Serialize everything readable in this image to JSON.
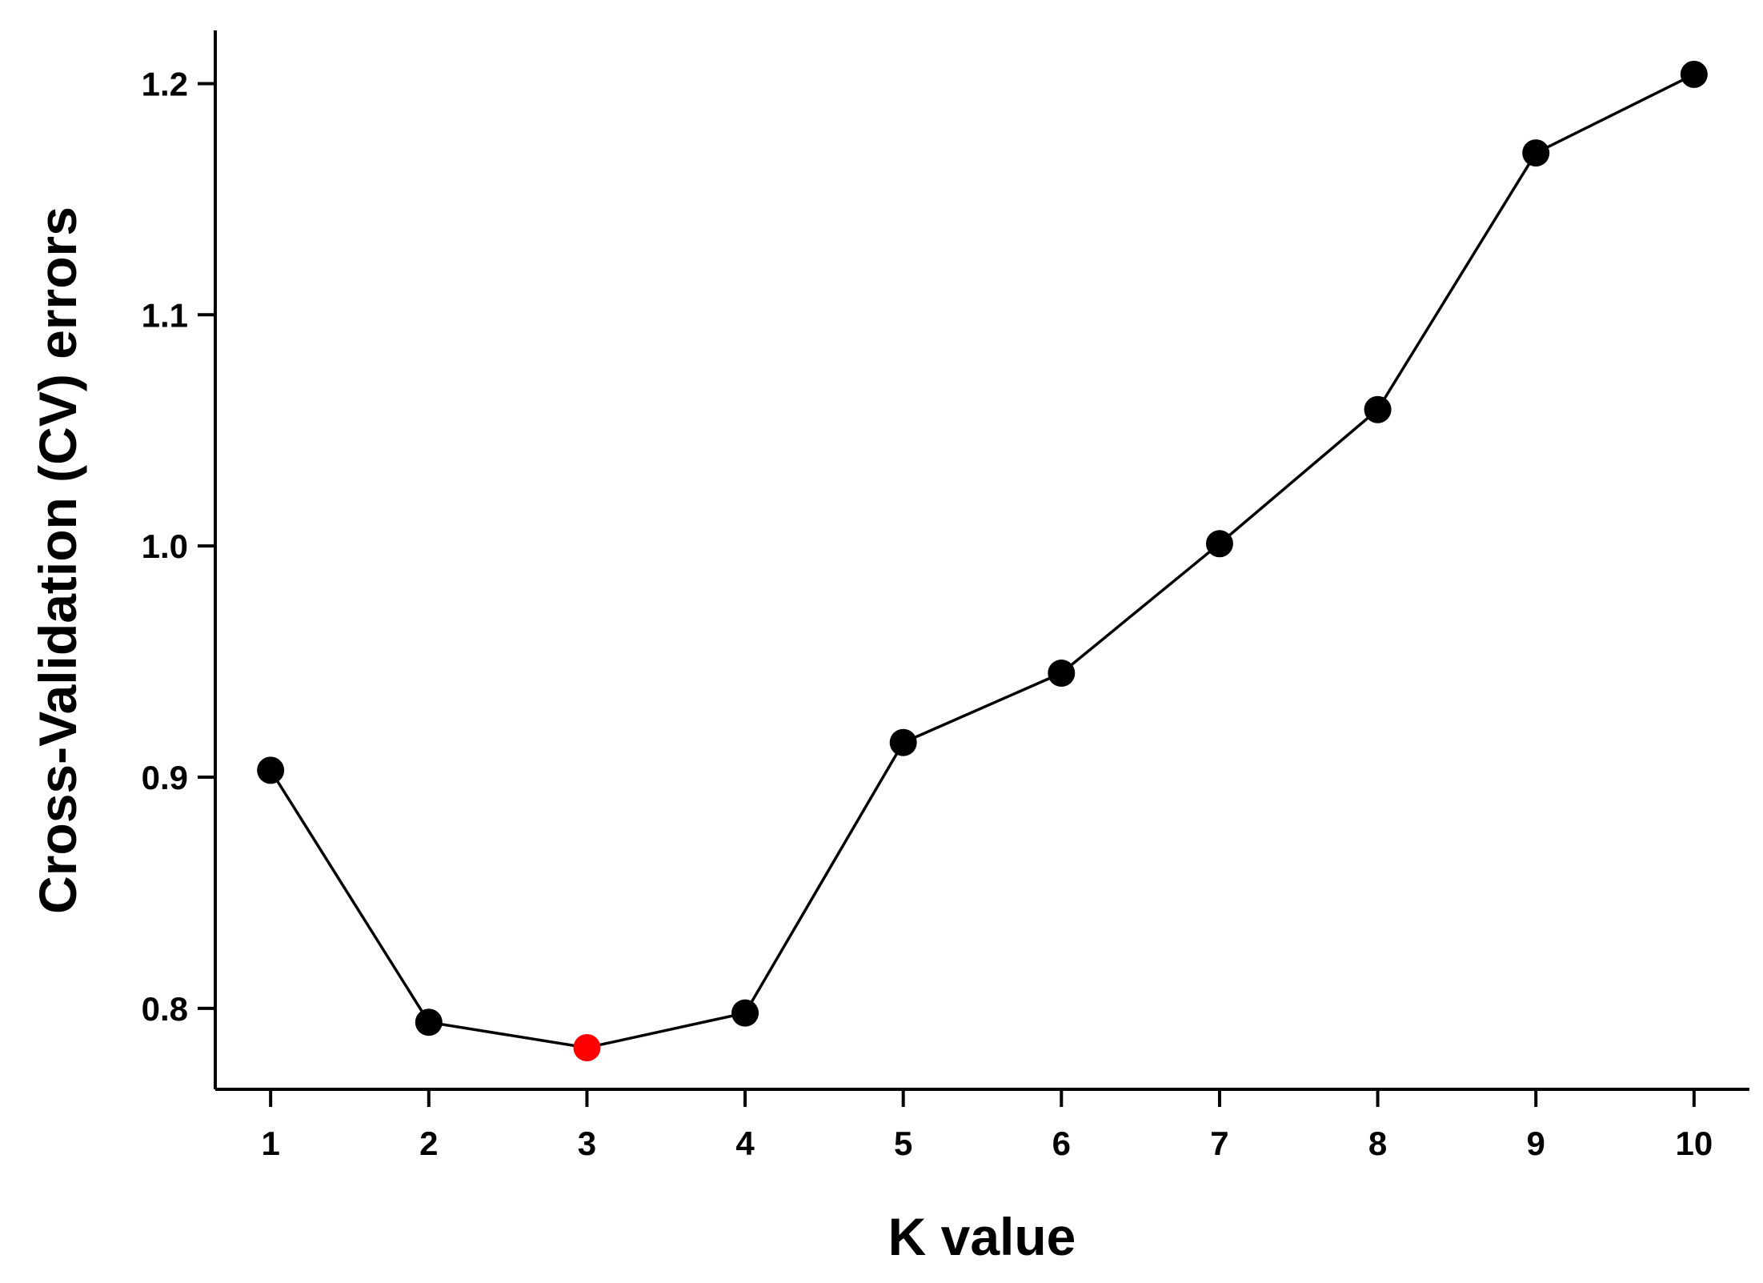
{
  "chart_data": {
    "type": "line",
    "title": "",
    "xlabel": "K value",
    "ylabel": "Cross-Validation (CV) errors",
    "x": [
      1,
      2,
      3,
      4,
      5,
      6,
      7,
      8,
      9,
      10
    ],
    "series": [
      {
        "values": [
          0.903,
          0.794,
          0.783,
          0.798,
          0.915,
          0.945,
          1.001,
          1.059,
          1.17,
          1.204
        ]
      }
    ],
    "highlight": {
      "x": 3,
      "y": 0.783,
      "color": "#ff0000"
    },
    "x_ticks": [
      "1",
      "2",
      "3",
      "4",
      "5",
      "6",
      "7",
      "8",
      "9",
      "10"
    ],
    "y_ticks": [
      "0.8",
      "0.9",
      "1.0",
      "1.1",
      "1.2"
    ],
    "xlim": [
      0.65,
      10.35
    ],
    "ylim": [
      0.765,
      1.223
    ],
    "grid": false,
    "legend": "none",
    "colors": {
      "line": "#000000",
      "marker": "#000000",
      "highlight": "#ff0000"
    }
  }
}
